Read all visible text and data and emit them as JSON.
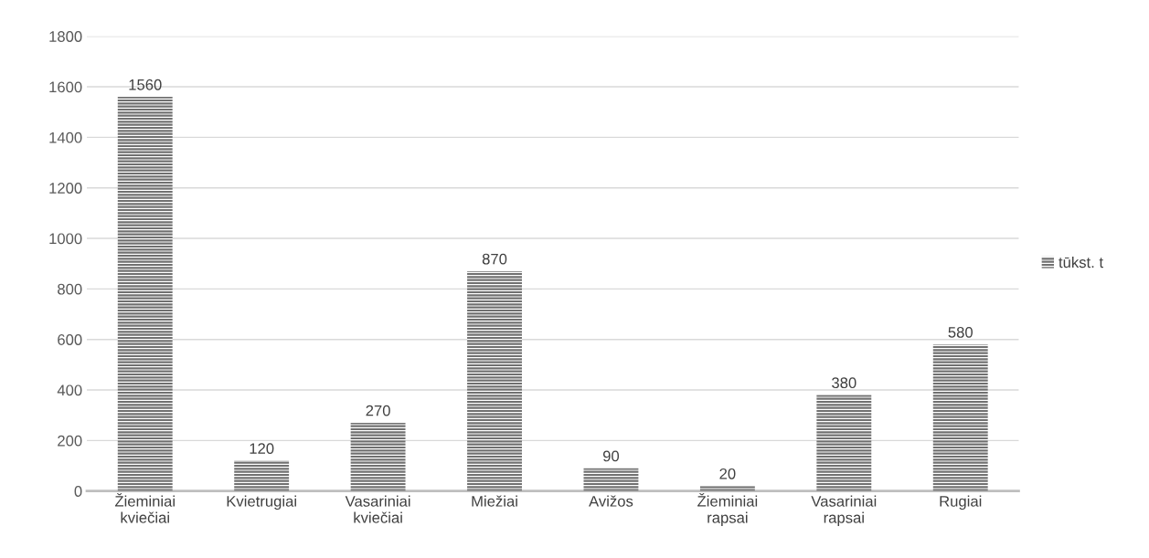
{
  "chart_data": {
    "type": "bar",
    "categories": [
      "Žieminiai\nkviečiai",
      "Kvietrugiai",
      "Vasariniai\nkviečiai",
      "Miežiai",
      "Avižos",
      "Žieminiai\nrapsai",
      "Vasariniai\nrapsai",
      "Rugiai"
    ],
    "series": [
      {
        "name": "tūkst. t",
        "color": "#707070",
        "values": [
          1560,
          120,
          270,
          870,
          90,
          20,
          380,
          580
        ]
      }
    ],
    "ylim": [
      0,
      1800
    ],
    "yticks": [
      0,
      200,
      400,
      600,
      800,
      1000,
      1200,
      1400,
      1600,
      1800
    ],
    "grid": "y",
    "legend": "right",
    "data_labels": true
  }
}
